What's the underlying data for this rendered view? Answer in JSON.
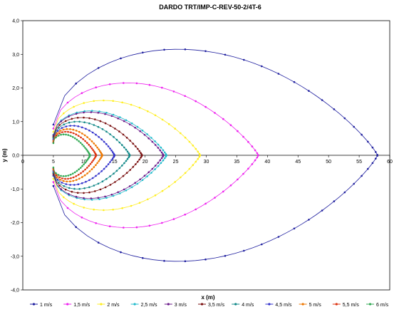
{
  "chart_data": {
    "type": "scatter",
    "title": "DARDO TRT/IMP-C-REV-50-2/4T-6",
    "xlabel": "x (m)",
    "ylabel": "y (m)",
    "xlim": [
      0,
      60
    ],
    "ylim": [
      -4,
      4
    ],
    "x_ticks": [
      "0",
      "5",
      "10",
      "15",
      "20",
      "25",
      "30",
      "35",
      "40",
      "45",
      "50",
      "55",
      "60"
    ],
    "y_ticks": [
      "4,0",
      "3,0",
      "2,0",
      "1,0",
      "0,0",
      "-1,0",
      "-2,0",
      "-3,0",
      "-4,0"
    ],
    "grid": false,
    "legend_position": "bottom",
    "series": [
      {
        "name": "1 m/s",
        "color": "#1f1f9f",
        "shape": [
          5.0,
          58.0,
          0.78,
          3.15
        ]
      },
      {
        "name": "1,5 m/s",
        "color": "#ee22ee",
        "shape": [
          5.0,
          38.5,
          0.72,
          2.15
        ]
      },
      {
        "name": "2 m/s",
        "color": "#ffee22",
        "shape": [
          5.0,
          29.0,
          0.66,
          1.63
        ]
      },
      {
        "name": "2,5 m/s",
        "color": "#22bbcc",
        "shape": [
          5.0,
          23.5,
          0.6,
          1.32
        ]
      },
      {
        "name": "3 m/s",
        "color": "#6a1a8a",
        "shape": [
          5.0,
          23.0,
          0.58,
          1.28
        ]
      },
      {
        "name": "3,5 m/s",
        "color": "#7a1010",
        "shape": [
          5.0,
          19.5,
          0.55,
          1.12
        ]
      },
      {
        "name": "4 m/s",
        "color": "#118888",
        "shape": [
          5.0,
          17.5,
          0.52,
          1.0
        ]
      },
      {
        "name": "4,5 m/s",
        "color": "#3333cc",
        "shape": [
          5.0,
          15.0,
          0.48,
          0.88
        ]
      },
      {
        "name": "5 m/s",
        "color": "#ee7700",
        "shape": [
          5.0,
          13.0,
          0.45,
          0.78
        ]
      },
      {
        "name": "5,5 m/s",
        "color": "#dd3311",
        "shape": [
          5.0,
          12.0,
          0.42,
          0.7
        ]
      },
      {
        "name": "6 m/s",
        "color": "#33aa55",
        "shape": [
          5.0,
          11.0,
          0.4,
          0.62
        ]
      }
    ]
  }
}
